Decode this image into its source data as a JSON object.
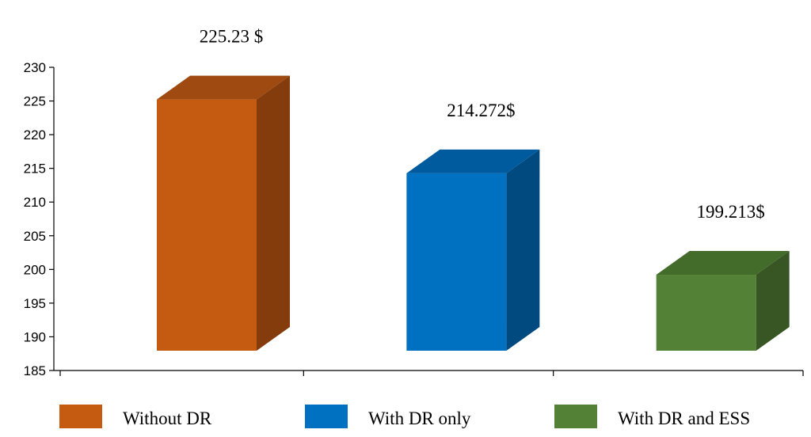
{
  "chart_data": {
    "type": "bar",
    "style": "3d",
    "categories": [
      "Without DR",
      "With DR only",
      "With DR and ESS"
    ],
    "values": [
      225.23,
      214.272,
      199.213
    ],
    "data_labels": [
      "225.23 $",
      "214.272$",
      "199.213$"
    ],
    "title": "",
    "xlabel": "",
    "ylabel": "",
    "ylim": [
      185,
      230
    ],
    "yticks": [
      185,
      190,
      195,
      200,
      205,
      210,
      215,
      220,
      225,
      230
    ],
    "grid": false,
    "legend": {
      "placement": "bottom",
      "entries": [
        "Without DR",
        "With DR only",
        "With DR and ESS"
      ]
    },
    "colors": {
      "front": [
        "#C55A11",
        "#0070C0",
        "#538135"
      ],
      "side": [
        "#843C0C",
        "#004A80",
        "#375623"
      ],
      "top": [
        "#9E4A10",
        "#005A9E",
        "#436B2A"
      ]
    }
  }
}
